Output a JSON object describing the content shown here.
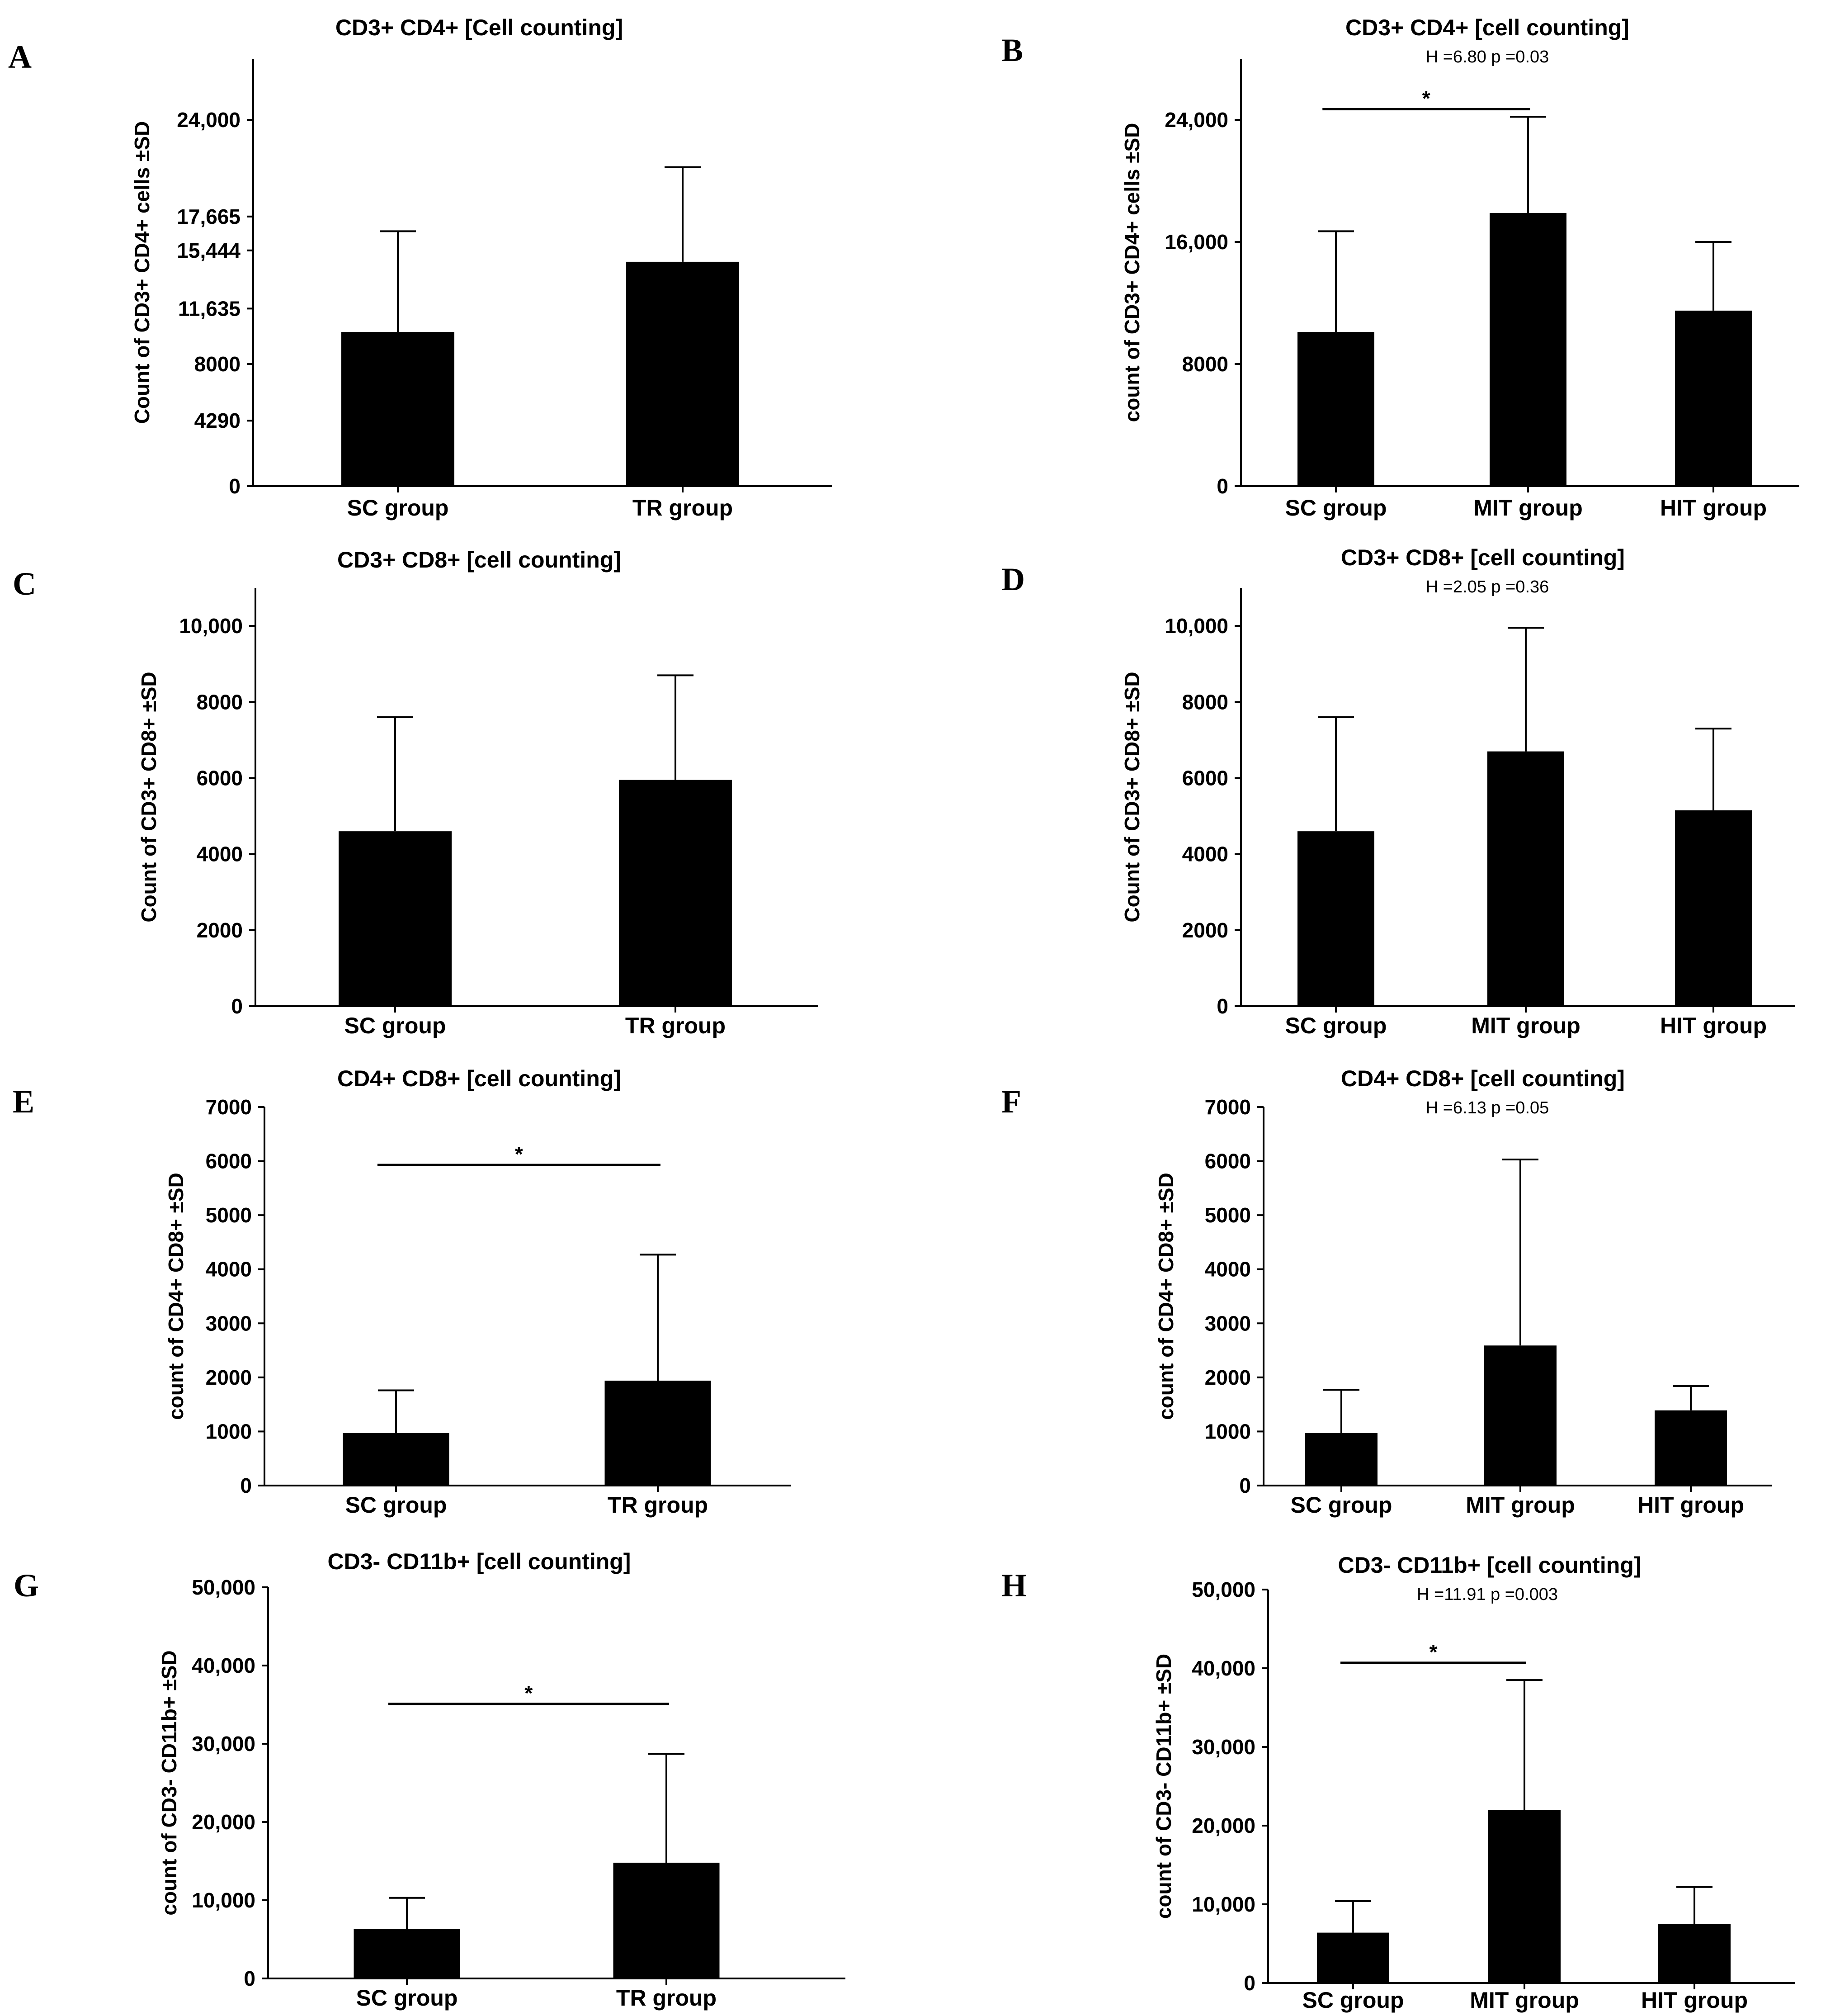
{
  "chart_data": [
    {
      "panel": "A",
      "type": "bar",
      "title": "CD3+ CD4+ [Cell counting]",
      "stat_text": "",
      "ylabel": "Count of CD3+ CD4+ cells ±SD",
      "xlabel": "",
      "categories": [
        "SC group",
        "TR group"
      ],
      "values": [
        10100,
        14700
      ],
      "sd_upper": [
        16700,
        20900
      ],
      "ylim": [
        0,
        28000
      ],
      "yticks": [
        0,
        4290,
        8000,
        11635,
        15444,
        17665,
        24000
      ],
      "ytick_labels": [
        "0",
        "4290",
        "8000",
        "11,635",
        "15,444",
        "17,665",
        "24,000"
      ],
      "significance": [],
      "color": "#000000"
    },
    {
      "panel": "B",
      "type": "bar",
      "title": "CD3+ CD4+ [cell counting]",
      "stat_text": "H =6.80 p =0.03",
      "ylabel": "count of CD3+ CD4+ cells ±SD",
      "xlabel": "",
      "categories": [
        "SC group",
        "MIT group",
        "HIT group"
      ],
      "values": [
        10100,
        17900,
        11500
      ],
      "sd_upper": [
        16700,
        24200,
        16000
      ],
      "ylim": [
        0,
        28000
      ],
      "yticks": [
        0,
        8000,
        16000,
        24000
      ],
      "ytick_labels": [
        "0",
        "8000",
        "16,000",
        "24,000"
      ],
      "significance": [
        {
          "from": 0,
          "to": 1,
          "level": 24700,
          "label": "*"
        }
      ],
      "color": "#000000"
    },
    {
      "panel": "C",
      "type": "bar",
      "title": "CD3+ CD8+ [cell counting]",
      "stat_text": "",
      "ylabel": "Count of CD3+ CD8+ ±SD",
      "xlabel": "",
      "categories": [
        "SC group",
        "TR group"
      ],
      "values": [
        4600,
        5950
      ],
      "sd_upper": [
        7600,
        8700
      ],
      "ylim": [
        0,
        11000
      ],
      "yticks": [
        0,
        2000,
        4000,
        6000,
        8000,
        10000
      ],
      "ytick_labels": [
        "0",
        "2000",
        "4000",
        "6000",
        "8000",
        "10,000"
      ],
      "significance": [],
      "color": "#000000"
    },
    {
      "panel": "D",
      "type": "bar",
      "title": "CD3+ CD8+ [cell counting]",
      "stat_text": "H =2.05 p =0.36",
      "ylabel": "Count of  CD3+ CD8+ ±SD",
      "xlabel": "",
      "categories": [
        "SC group",
        "MIT group",
        "HIT group"
      ],
      "values": [
        4600,
        6700,
        5150
      ],
      "sd_upper": [
        7600,
        9950,
        7300
      ],
      "ylim": [
        0,
        11000
      ],
      "yticks": [
        0,
        2000,
        4000,
        6000,
        8000,
        10000
      ],
      "ytick_labels": [
        "0",
        "2000",
        "4000",
        "6000",
        "8000",
        "10,000"
      ],
      "significance": [],
      "color": "#000000"
    },
    {
      "panel": "E",
      "type": "bar",
      "title": "CD4+ CD8+ [cell counting]",
      "stat_text": "",
      "ylabel": "count of CD4+ CD8+ ±SD",
      "xlabel": "",
      "categories": [
        "SC group",
        "TR group"
      ],
      "values": [
        970,
        1940
      ],
      "sd_upper": [
        1760,
        4270
      ],
      "ylim": [
        0,
        7000
      ],
      "yticks": [
        0,
        1000,
        2000,
        3000,
        4000,
        5000,
        6000,
        7000
      ],
      "ytick_labels": [
        "0",
        "1000",
        "2000",
        "3000",
        "4000",
        "5000",
        "6000",
        "7000"
      ],
      "significance": [
        {
          "from": 0,
          "to": 1,
          "level": 5930,
          "label": "*"
        }
      ],
      "color": "#000000"
    },
    {
      "panel": "F",
      "type": "bar",
      "title": "CD4+ CD8+ [cell counting]",
      "stat_text": "H =6.13 p =0.05",
      "ylabel": "count of CD4+ CD8+ ±SD",
      "xlabel": "",
      "categories": [
        "SC group",
        "MIT group",
        "HIT group"
      ],
      "values": [
        970,
        2590,
        1390
      ],
      "sd_upper": [
        1770,
        6030,
        1840
      ],
      "ylim": [
        0,
        7000
      ],
      "yticks": [
        0,
        1000,
        2000,
        3000,
        4000,
        5000,
        6000,
        7000
      ],
      "ytick_labels": [
        "0",
        "1000",
        "2000",
        "3000",
        "4000",
        "5000",
        "6000",
        "7000"
      ],
      "significance": [],
      "color": "#000000"
    },
    {
      "panel": "G",
      "type": "bar",
      "title": "CD3- CD11b+ [cell counting]",
      "stat_text": "",
      "ylabel": "count of CD3- CD11b+ ±SD",
      "xlabel": "",
      "categories": [
        "SC group",
        "TR group"
      ],
      "values": [
        6300,
        14800
      ],
      "sd_upper": [
        10300,
        28700
      ],
      "ylim": [
        0,
        50000
      ],
      "yticks": [
        0,
        10000,
        20000,
        30000,
        40000,
        50000
      ],
      "ytick_labels": [
        "0",
        "10,000",
        "20,000",
        "30,000",
        "40,000",
        "50,000"
      ],
      "significance": [
        {
          "from": 0,
          "to": 1,
          "level": 35100,
          "label": "*"
        }
      ],
      "color": "#000000"
    },
    {
      "panel": "H",
      "type": "bar",
      "title": "CD3- CD11b+ [cell counting]",
      "stat_text": "H =11.91 p =0.003",
      "ylabel": "count of CD3- CD11b+ ±SD",
      "xlabel": "",
      "categories": [
        "SC group",
        "MIT group",
        "HIT group"
      ],
      "values": [
        6400,
        22000,
        7500
      ],
      "sd_upper": [
        10400,
        38500,
        12200
      ],
      "ylim": [
        0,
        50000
      ],
      "yticks": [
        0,
        10000,
        20000,
        30000,
        40000,
        50000
      ],
      "ytick_labels": [
        "0",
        "10,000",
        "20,000",
        "30,000",
        "40,000",
        "50,000"
      ],
      "significance": [
        {
          "from": 0,
          "to": 1,
          "level": 40700,
          "label": "*"
        }
      ],
      "color": "#000000"
    }
  ]
}
